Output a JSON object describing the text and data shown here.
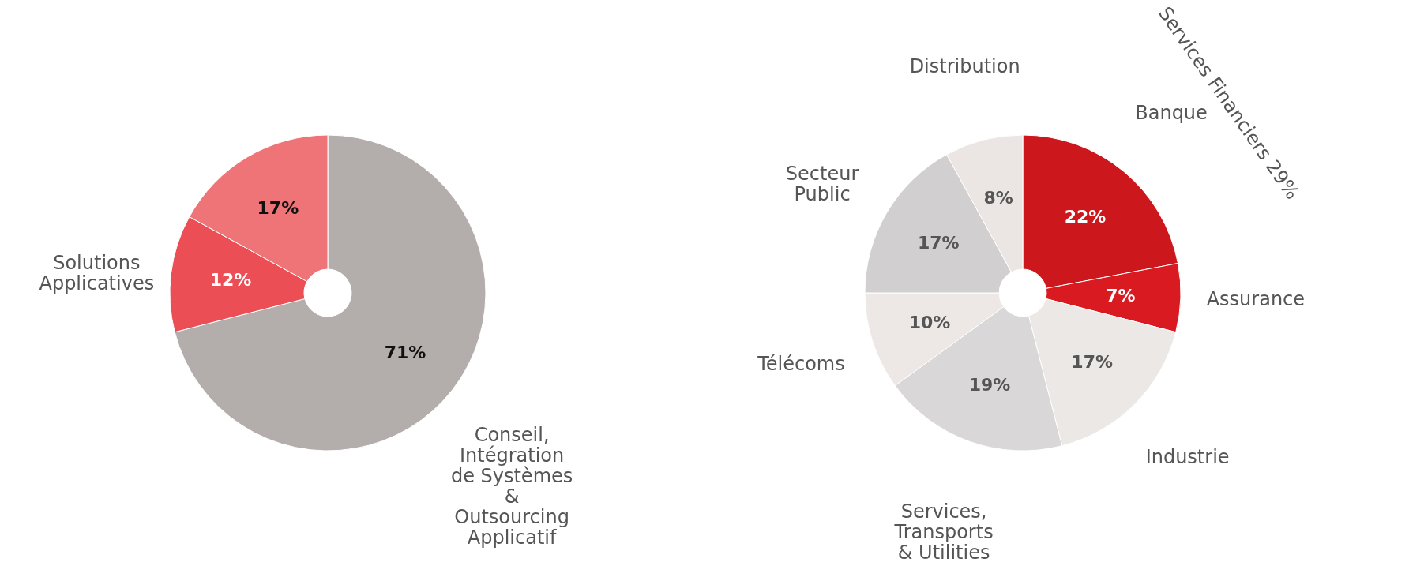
{
  "chart_data": [
    {
      "type": "donut",
      "categories": [
        "Conseil,\nIntégration\nde Systèmes\n&\nOutsourcing\nApplicatif",
        "Solutions\nApplicatives",
        null
      ],
      "values": [
        71,
        12,
        17
      ],
      "value_labels": [
        "71%",
        "12%",
        "17%"
      ],
      "colors": [
        "#b3aeab",
        "#ec4e55",
        "#ee7478"
      ]
    },
    {
      "type": "donut",
      "categories": [
        "Banque",
        "Assurance",
        "Industrie",
        "Services,\nTransports\n& Utilities",
        "Télécoms",
        "Secteur\nPublic",
        "Distribution"
      ],
      "values": [
        22,
        7,
        17,
        19,
        10,
        17,
        8
      ],
      "value_labels": [
        "22%",
        "7%",
        "17%",
        "19%",
        "10%",
        "17%",
        "8%"
      ],
      "colors": [
        "#cc171d",
        "#d91a20",
        "#ece8e6",
        "#d9d7d7",
        "#ede8e5",
        "#d1cfcf",
        "#ebe6e3"
      ],
      "annotations": [
        "Services Financiers 29%"
      ]
    }
  ]
}
